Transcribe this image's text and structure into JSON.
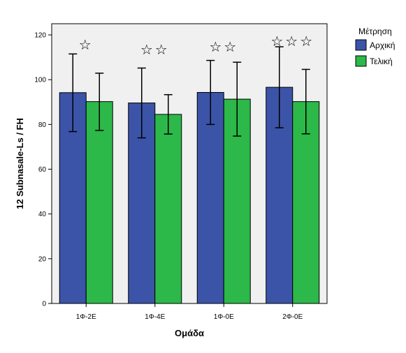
{
  "chart_data": {
    "type": "bar",
    "categories": [
      "1Φ-2E",
      "1Φ-4E",
      "1Φ-0E",
      "2Φ-0E"
    ],
    "series": [
      {
        "name": "Αρχική",
        "color": "#3b54a8",
        "values": [
          94.2,
          89.6,
          94.3,
          96.6
        ],
        "error_low": [
          76.8,
          74.0,
          80.0,
          78.5
        ],
        "error_high": [
          111.5,
          105.2,
          108.6,
          114.7
        ]
      },
      {
        "name": "Τελική",
        "color": "#2db84a",
        "values": [
          90.2,
          84.5,
          91.3,
          90.2
        ],
        "error_low": [
          77.3,
          75.7,
          74.8,
          75.8
        ],
        "error_high": [
          102.9,
          93.3,
          107.8,
          104.6
        ]
      }
    ],
    "significance_marks": [
      "☆",
      "☆☆",
      "☆☆",
      "☆☆☆"
    ],
    "xlabel": "Ομάδα",
    "ylabel": "12 Subnasale-Ls / FH",
    "ylim": [
      0,
      125
    ],
    "yticks": [
      0,
      20,
      40,
      60,
      80,
      100,
      120
    ],
    "grid": false,
    "plot_background": "#f0f0f0",
    "legend": {
      "title": "Μέτρηση",
      "placement": "right"
    }
  }
}
